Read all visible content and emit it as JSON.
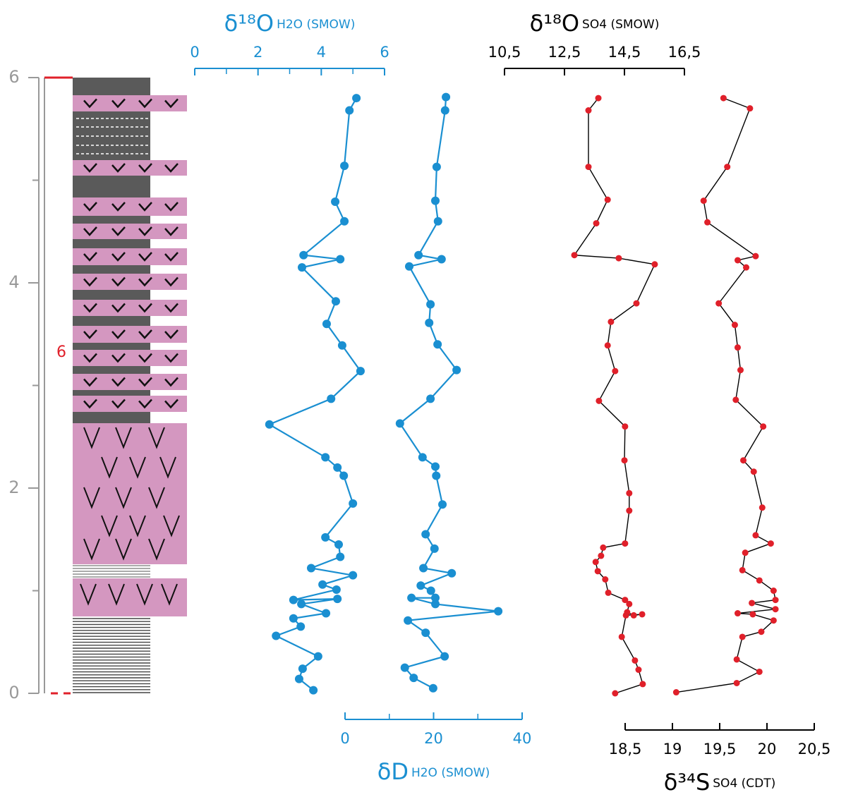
{
  "depth_axis": {
    "ylim": [
      0,
      6
    ],
    "yticks": [
      0,
      2,
      4,
      6
    ],
    "minor_yticks": [
      1,
      3,
      5
    ],
    "unit_label": "6"
  },
  "chart_data": [
    {
      "type": "line",
      "xlabel": "δ¹⁸O",
      "xlabel_sub": "H2O (SMOW)",
      "axis_position": "top",
      "axis_color": "#1a8fd1",
      "xlim": [
        0,
        6
      ],
      "xticks": [
        0,
        2,
        4,
        6
      ],
      "minor_xticks": [
        1,
        3,
        5
      ],
      "series": [
        {
          "color": "#1a8fd1",
          "line_color": "#1a8fd1",
          "values": [
            5.11,
            4.89,
            4.73,
            4.44,
            4.73,
            3.44,
            4.6,
            3.39,
            4.46,
            4.17,
            4.66,
            5.24,
            4.31,
            2.36,
            4.13,
            4.51,
            4.71,
            5.0,
            4.13,
            4.55,
            4.6,
            3.68,
            5.0,
            4.04,
            4.48,
            3.12,
            4.51,
            3.37,
            4.15,
            3.12,
            3.35,
            2.57,
            3.9,
            3.41,
            3.3,
            3.75
          ],
          "depth": [
            5.8,
            5.68,
            5.14,
            4.79,
            4.6,
            4.27,
            4.23,
            4.15,
            3.82,
            3.6,
            3.39,
            3.14,
            2.87,
            2.62,
            2.3,
            2.2,
            2.12,
            1.85,
            1.52,
            1.45,
            1.33,
            1.22,
            1.15,
            1.06,
            1.01,
            0.91,
            0.92,
            0.87,
            0.78,
            0.73,
            0.65,
            0.56,
            0.36,
            0.24,
            0.14,
            0.03
          ]
        }
      ]
    },
    {
      "type": "line",
      "xlabel": "δD",
      "xlabel_sub": "H2O (SMOW)",
      "axis_position": "bottom",
      "axis_color": "#1a8fd1",
      "xlim": [
        0,
        40
      ],
      "xticks": [
        0,
        20,
        40
      ],
      "minor_xticks": [
        10,
        30
      ],
      "series": [
        {
          "color": "#1a8fd1",
          "line_color": "#1a8fd1",
          "values": [
            22.8,
            22.6,
            20.7,
            20.4,
            21.0,
            16.6,
            21.8,
            14.5,
            19.3,
            19.0,
            20.9,
            25.2,
            19.3,
            12.4,
            17.5,
            20.4,
            20.6,
            22.0,
            18.2,
            20.2,
            17.7,
            24.1,
            17.1,
            19.4,
            20.4,
            15.0,
            20.4,
            34.6,
            14.2,
            18.2,
            22.5,
            13.5,
            15.5,
            19.9
          ],
          "depth": [
            5.81,
            5.68,
            5.13,
            4.8,
            4.6,
            4.27,
            4.23,
            4.16,
            3.79,
            3.61,
            3.4,
            3.15,
            2.87,
            2.63,
            2.3,
            2.21,
            2.12,
            1.84,
            1.55,
            1.41,
            1.22,
            1.17,
            1.05,
            1.0,
            0.93,
            0.93,
            0.87,
            0.8,
            0.71,
            0.59,
            0.36,
            0.25,
            0.15,
            0.05
          ]
        }
      ]
    },
    {
      "type": "line",
      "xlabel": "δ¹⁸O",
      "xlabel_sub": "SO4 (SMOW)",
      "axis_position": "top",
      "axis_color": "#000000",
      "xlim": [
        10.5,
        16.5
      ],
      "xticks": [
        {
          "value": 10.5,
          "label": "10,5"
        },
        {
          "value": 12.5,
          "label": "12,5"
        },
        {
          "value": 14.5,
          "label": "14,5"
        },
        {
          "value": 16.5,
          "label": "16,5"
        }
      ],
      "series": [
        {
          "color": "#e0202a",
          "line_color": "#000000",
          "values": [
            13.63,
            13.3,
            13.3,
            13.94,
            13.56,
            12.83,
            14.31,
            15.51,
            14.9,
            14.05,
            13.94,
            14.19,
            13.65,
            14.52,
            14.5,
            14.66,
            14.66,
            14.52,
            13.79,
            13.72,
            13.54,
            13.61,
            13.86,
            13.96,
            14.52,
            14.66,
            14.59,
            14.81,
            15.09,
            14.55,
            14.41,
            14.85,
            14.97,
            15.11,
            14.19
          ],
          "depth": [
            5.8,
            5.68,
            5.13,
            4.81,
            4.58,
            4.27,
            4.24,
            4.18,
            3.8,
            3.62,
            3.39,
            3.14,
            2.85,
            2.6,
            2.27,
            1.95,
            1.78,
            1.46,
            1.42,
            1.34,
            1.28,
            1.19,
            1.11,
            0.98,
            0.91,
            0.87,
            0.79,
            0.76,
            0.77,
            0.76,
            0.55,
            0.32,
            0.23,
            0.09,
            0.0
          ]
        }
      ]
    },
    {
      "type": "line",
      "xlabel": "δ³⁴S",
      "xlabel_sub": "SO4 (CDT)",
      "axis_position": "bottom",
      "axis_color": "#000000",
      "xlim": [
        18.5,
        20.5
      ],
      "xticks": [
        {
          "value": 18.5,
          "label": "18,5"
        },
        19,
        {
          "value": 19.5,
          "label": "19,5"
        },
        20,
        {
          "value": 20.5,
          "label": "20,5"
        }
      ],
      "series": [
        {
          "color": "#e0202a",
          "line_color": "#000000",
          "values": [
            19.54,
            19.82,
            19.58,
            19.33,
            19.37,
            19.88,
            19.69,
            19.78,
            19.49,
            19.66,
            19.69,
            19.72,
            19.67,
            19.96,
            19.75,
            19.86,
            19.95,
            19.88,
            20.04,
            19.77,
            19.74,
            19.92,
            20.07,
            20.09,
            19.84,
            20.09,
            19.69,
            19.85,
            20.07,
            19.94,
            19.74,
            19.68,
            19.92,
            19.68,
            19.04
          ],
          "depth": [
            5.8,
            5.7,
            5.13,
            4.8,
            4.59,
            4.26,
            4.22,
            4.15,
            3.8,
            3.59,
            3.37,
            3.15,
            2.86,
            2.6,
            2.27,
            2.16,
            1.81,
            1.54,
            1.46,
            1.37,
            1.2,
            1.1,
            1.0,
            0.91,
            0.88,
            0.82,
            0.78,
            0.77,
            0.71,
            0.6,
            0.55,
            0.33,
            0.21,
            0.1,
            0.01
          ]
        }
      ]
    }
  ]
}
